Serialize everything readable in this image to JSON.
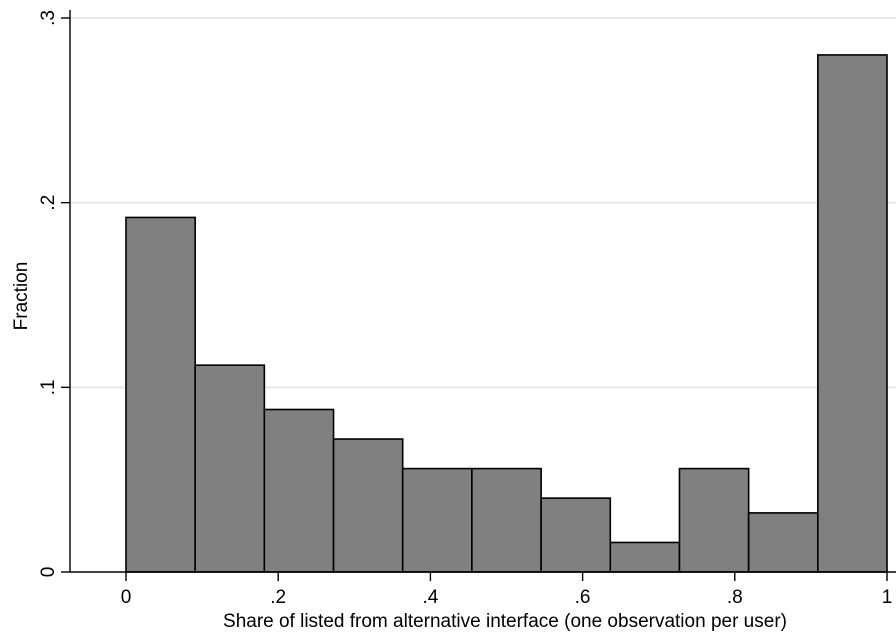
{
  "chart_data": {
    "type": "bar",
    "title": "",
    "xlabel": "Share of listed from alternative interface (one observation per user)",
    "ylabel": "Fraction",
    "xlim": [
      0,
      1
    ],
    "ylim": [
      0,
      0.3
    ],
    "x_ticks": [
      {
        "value": 0,
        "label": "0"
      },
      {
        "value": 0.2,
        "label": ".2"
      },
      {
        "value": 0.4,
        "label": ".4"
      },
      {
        "value": 0.6,
        "label": ".6"
      },
      {
        "value": 0.8,
        "label": ".8"
      },
      {
        "value": 1,
        "label": "1"
      }
    ],
    "y_ticks": [
      {
        "value": 0,
        "label": "0"
      },
      {
        "value": 0.1,
        "label": ".1"
      },
      {
        "value": 0.2,
        "label": ".2"
      },
      {
        "value": 0.3,
        "label": ".3"
      }
    ],
    "grid": true,
    "bin_edges": [
      0,
      0.0909,
      0.1818,
      0.2727,
      0.3636,
      0.4545,
      0.5455,
      0.6364,
      0.7273,
      0.8182,
      0.9091,
      1.0
    ],
    "values": [
      0.192,
      0.112,
      0.088,
      0.072,
      0.056,
      0.056,
      0.04,
      0.016,
      0.056,
      0.032,
      0.28
    ],
    "bar_color": "#808080",
    "bar_edge_color": "#000000",
    "grid_color": "#e8e8e8"
  }
}
